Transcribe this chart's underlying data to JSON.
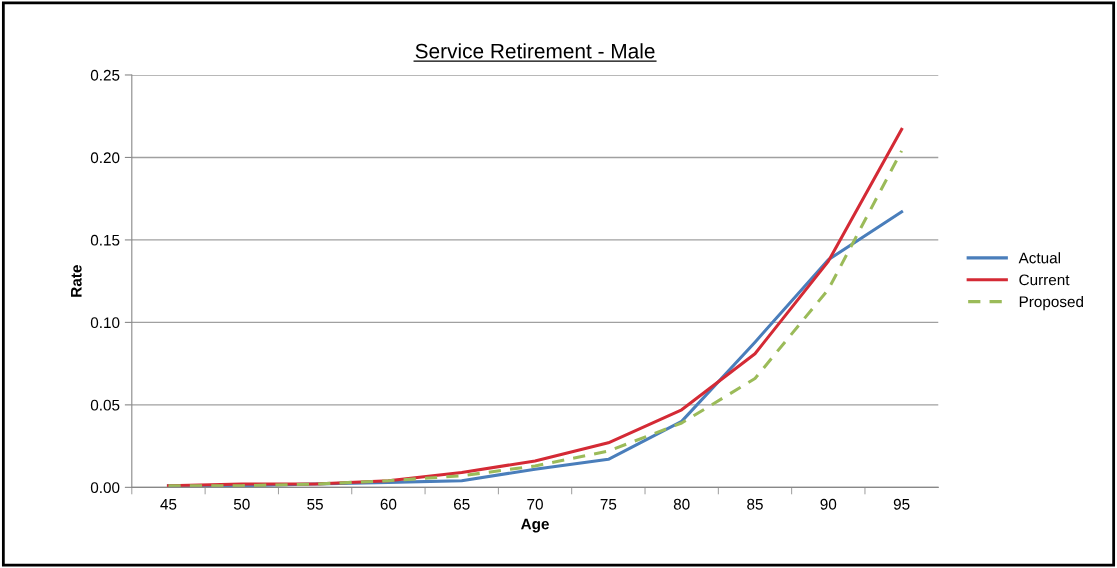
{
  "chart_data": {
    "type": "line",
    "title": "Service Retirement - Male",
    "xlabel": "Age",
    "ylabel": "Rate",
    "categories": [
      "45",
      "50",
      "55",
      "60",
      "65",
      "70",
      "75",
      "80",
      "85",
      "90",
      "95"
    ],
    "series": [
      {
        "name": "Actual",
        "color": "#4a7ebb",
        "values": [
          0.001,
          0.001,
          0.002,
          0.003,
          0.004,
          0.011,
          0.017,
          0.04,
          0.088,
          0.138,
          0.167
        ]
      },
      {
        "name": "Current",
        "color": "#d42a35",
        "values": [
          0.001,
          0.002,
          0.002,
          0.004,
          0.009,
          0.016,
          0.027,
          0.047,
          0.081,
          0.137,
          0.217
        ]
      },
      {
        "name": "Proposed",
        "color": "#9bbb59",
        "line_style": "dashed",
        "values": [
          0.001,
          0.001,
          0.002,
          0.004,
          0.007,
          0.013,
          0.022,
          0.039,
          0.066,
          0.12,
          0.204
        ]
      }
    ],
    "ylim": [
      0,
      0.25
    ],
    "yticks": [
      {
        "value": 0,
        "label": "0.00"
      },
      {
        "value": 0.05,
        "label": "0.05"
      },
      {
        "value": 0.1,
        "label": "0.10"
      },
      {
        "value": 0.15,
        "label": "0.15"
      },
      {
        "value": 0.2,
        "label": "0.20"
      },
      {
        "value": 0.25,
        "label": "0.25"
      }
    ],
    "grid": "y",
    "legend": "right"
  }
}
